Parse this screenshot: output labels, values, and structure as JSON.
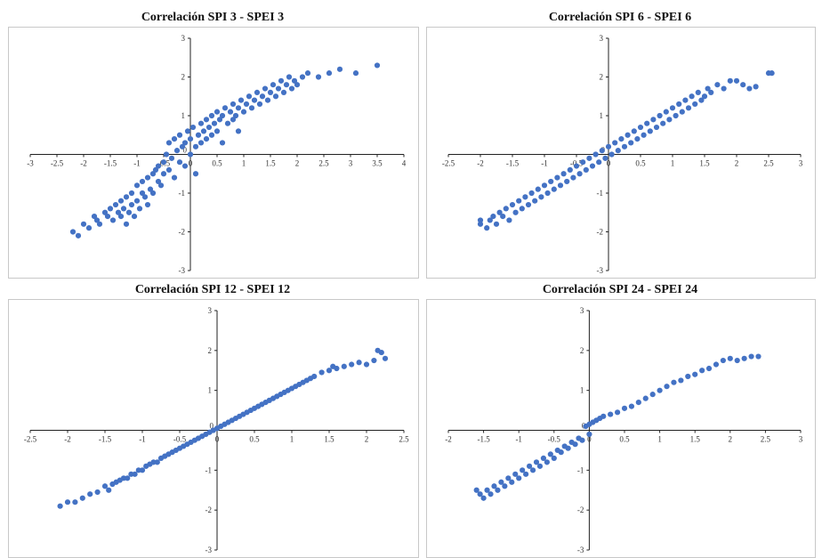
{
  "colors": {
    "point": "#4472C4",
    "axis": "#222222",
    "border": "#c8c8c8"
  },
  "chart_data": [
    {
      "type": "scatter",
      "title": "Correlación SPI 3 - SPEI 3",
      "xlim": [
        -3,
        4
      ],
      "ylim": [
        -3,
        3
      ],
      "xticks": [
        -3,
        -2.5,
        -2,
        -1.5,
        -1,
        -0.5,
        0,
        0.5,
        1,
        1.5,
        2,
        2.5,
        3,
        3.5,
        4
      ],
      "yticks": [
        -3,
        -2,
        -1,
        0,
        1,
        2,
        3
      ],
      "points": [
        [
          -2.2,
          -2.0
        ],
        [
          -2.1,
          -2.1
        ],
        [
          -2.0,
          -1.8
        ],
        [
          -1.9,
          -1.9
        ],
        [
          -1.8,
          -1.6
        ],
        [
          -1.75,
          -1.7
        ],
        [
          -1.7,
          -1.8
        ],
        [
          -1.6,
          -1.5
        ],
        [
          -1.55,
          -1.6
        ],
        [
          -1.5,
          -1.4
        ],
        [
          -1.45,
          -1.7
        ],
        [
          -1.4,
          -1.3
        ],
        [
          -1.35,
          -1.5
        ],
        [
          -1.3,
          -1.6
        ],
        [
          -1.3,
          -1.2
        ],
        [
          -1.25,
          -1.4
        ],
        [
          -1.2,
          -1.1
        ],
        [
          -1.2,
          -1.8
        ],
        [
          -1.15,
          -1.5
        ],
        [
          -1.1,
          -1.3
        ],
        [
          -1.1,
          -1.0
        ],
        [
          -1.05,
          -1.6
        ],
        [
          -1.0,
          -1.2
        ],
        [
          -1.0,
          -0.8
        ],
        [
          -0.95,
          -1.4
        ],
        [
          -0.9,
          -1.0
        ],
        [
          -0.9,
          -0.7
        ],
        [
          -0.85,
          -1.1
        ],
        [
          -0.8,
          -0.6
        ],
        [
          -0.8,
          -1.3
        ],
        [
          -0.75,
          -0.9
        ],
        [
          -0.7,
          -0.5
        ],
        [
          -0.7,
          -1.0
        ],
        [
          -0.65,
          -0.4
        ],
        [
          -0.6,
          -0.7
        ],
        [
          -0.6,
          -0.3
        ],
        [
          -0.55,
          -0.8
        ],
        [
          -0.5,
          -0.2
        ],
        [
          -0.5,
          -0.5
        ],
        [
          -0.45,
          0.0
        ],
        [
          -0.4,
          -0.4
        ],
        [
          -0.4,
          0.3
        ],
        [
          -0.35,
          -0.1
        ],
        [
          -0.3,
          0.4
        ],
        [
          -0.3,
          -0.6
        ],
        [
          -0.25,
          0.1
        ],
        [
          -0.2,
          -0.2
        ],
        [
          -0.2,
          0.5
        ],
        [
          -0.15,
          0.2
        ],
        [
          -0.1,
          -0.3
        ],
        [
          -0.1,
          0.3
        ],
        [
          -0.05,
          0.6
        ],
        [
          0.0,
          0.0
        ],
        [
          0.0,
          0.4
        ],
        [
          0.05,
          0.7
        ],
        [
          0.1,
          0.2
        ],
        [
          0.1,
          -0.5
        ],
        [
          0.15,
          0.5
        ],
        [
          0.2,
          0.3
        ],
        [
          0.2,
          0.8
        ],
        [
          0.25,
          0.6
        ],
        [
          0.3,
          0.4
        ],
        [
          0.3,
          0.9
        ],
        [
          0.35,
          0.7
        ],
        [
          0.4,
          0.5
        ],
        [
          0.4,
          1.0
        ],
        [
          0.45,
          0.8
        ],
        [
          0.5,
          0.6
        ],
        [
          0.5,
          1.1
        ],
        [
          0.55,
          0.9
        ],
        [
          0.6,
          0.3
        ],
        [
          0.6,
          1.0
        ],
        [
          0.65,
          1.2
        ],
        [
          0.7,
          0.8
        ],
        [
          0.75,
          1.1
        ],
        [
          0.8,
          0.9
        ],
        [
          0.8,
          1.3
        ],
        [
          0.85,
          1.0
        ],
        [
          0.9,
          1.2
        ],
        [
          0.9,
          0.6
        ],
        [
          0.95,
          1.4
        ],
        [
          1.0,
          1.1
        ],
        [
          1.05,
          1.3
        ],
        [
          1.1,
          1.5
        ],
        [
          1.15,
          1.2
        ],
        [
          1.2,
          1.4
        ],
        [
          1.25,
          1.6
        ],
        [
          1.3,
          1.3
        ],
        [
          1.35,
          1.5
        ],
        [
          1.4,
          1.7
        ],
        [
          1.45,
          1.4
        ],
        [
          1.5,
          1.6
        ],
        [
          1.55,
          1.8
        ],
        [
          1.6,
          1.5
        ],
        [
          1.65,
          1.7
        ],
        [
          1.7,
          1.9
        ],
        [
          1.75,
          1.6
        ],
        [
          1.8,
          1.8
        ],
        [
          1.85,
          2.0
        ],
        [
          1.9,
          1.7
        ],
        [
          1.95,
          1.9
        ],
        [
          2.0,
          1.8
        ],
        [
          2.1,
          2.0
        ],
        [
          2.2,
          2.1
        ],
        [
          2.4,
          2.0
        ],
        [
          2.6,
          2.1
        ],
        [
          2.8,
          2.2
        ],
        [
          3.1,
          2.1
        ],
        [
          3.5,
          2.3
        ]
      ]
    },
    {
      "type": "scatter",
      "title": "Correlación SPI 6 - SPEI 6",
      "xlim": [
        -2.5,
        3
      ],
      "ylim": [
        -3,
        3
      ],
      "xticks": [
        -2.5,
        -2,
        -1.5,
        -1,
        -0.5,
        0,
        0.5,
        1,
        1.5,
        2,
        2.5,
        3
      ],
      "yticks": [
        -3,
        -2,
        -1,
        0,
        1,
        2,
        3
      ],
      "points": [
        [
          -2.0,
          -1.8
        ],
        [
          -2.0,
          -1.7
        ],
        [
          -1.9,
          -1.9
        ],
        [
          -1.85,
          -1.7
        ],
        [
          -1.8,
          -1.6
        ],
        [
          -1.75,
          -1.8
        ],
        [
          -1.7,
          -1.5
        ],
        [
          -1.65,
          -1.6
        ],
        [
          -1.6,
          -1.4
        ],
        [
          -1.55,
          -1.7
        ],
        [
          -1.5,
          -1.3
        ],
        [
          -1.45,
          -1.5
        ],
        [
          -1.4,
          -1.2
        ],
        [
          -1.35,
          -1.4
        ],
        [
          -1.3,
          -1.1
        ],
        [
          -1.25,
          -1.3
        ],
        [
          -1.2,
          -1.0
        ],
        [
          -1.15,
          -1.2
        ],
        [
          -1.1,
          -0.9
        ],
        [
          -1.05,
          -1.1
        ],
        [
          -1.0,
          -0.8
        ],
        [
          -0.95,
          -1.0
        ],
        [
          -0.9,
          -0.7
        ],
        [
          -0.85,
          -0.9
        ],
        [
          -0.8,
          -0.6
        ],
        [
          -0.75,
          -0.8
        ],
        [
          -0.7,
          -0.5
        ],
        [
          -0.65,
          -0.7
        ],
        [
          -0.6,
          -0.4
        ],
        [
          -0.55,
          -0.6
        ],
        [
          -0.5,
          -0.3
        ],
        [
          -0.45,
          -0.5
        ],
        [
          -0.4,
          -0.2
        ],
        [
          -0.35,
          -0.4
        ],
        [
          -0.3,
          -0.1
        ],
        [
          -0.25,
          -0.3
        ],
        [
          -0.2,
          0.0
        ],
        [
          -0.15,
          -0.2
        ],
        [
          -0.1,
          0.1
        ],
        [
          -0.05,
          -0.1
        ],
        [
          0.0,
          0.2
        ],
        [
          0.05,
          0.0
        ],
        [
          0.1,
          0.3
        ],
        [
          0.15,
          0.1
        ],
        [
          0.2,
          0.4
        ],
        [
          0.25,
          0.2
        ],
        [
          0.3,
          0.5
        ],
        [
          0.35,
          0.3
        ],
        [
          0.4,
          0.6
        ],
        [
          0.45,
          0.4
        ],
        [
          0.5,
          0.7
        ],
        [
          0.55,
          0.5
        ],
        [
          0.6,
          0.8
        ],
        [
          0.65,
          0.6
        ],
        [
          0.7,
          0.9
        ],
        [
          0.75,
          0.7
        ],
        [
          0.8,
          1.0
        ],
        [
          0.85,
          0.8
        ],
        [
          0.9,
          1.1
        ],
        [
          0.95,
          0.9
        ],
        [
          1.0,
          1.2
        ],
        [
          1.05,
          1.0
        ],
        [
          1.1,
          1.3
        ],
        [
          1.15,
          1.1
        ],
        [
          1.2,
          1.4
        ],
        [
          1.25,
          1.2
        ],
        [
          1.3,
          1.5
        ],
        [
          1.35,
          1.3
        ],
        [
          1.4,
          1.6
        ],
        [
          1.45,
          1.4
        ],
        [
          1.5,
          1.5
        ],
        [
          1.55,
          1.7
        ],
        [
          1.6,
          1.6
        ],
        [
          1.7,
          1.8
        ],
        [
          1.8,
          1.7
        ],
        [
          1.9,
          1.9
        ],
        [
          2.0,
          1.9
        ],
        [
          2.1,
          1.8
        ],
        [
          2.2,
          1.7
        ],
        [
          2.3,
          1.75
        ],
        [
          2.5,
          2.1
        ],
        [
          2.55,
          2.1
        ]
      ]
    },
    {
      "type": "scatter",
      "title": "Correlación SPI 12 - SPEI 12",
      "xlim": [
        -2.5,
        2.5
      ],
      "ylim": [
        -3,
        3
      ],
      "xticks": [
        -2.5,
        -2,
        -1.5,
        -1,
        -0.5,
        0,
        0.5,
        1,
        1.5,
        2,
        2.5
      ],
      "yticks": [
        -3,
        -2,
        -1,
        0,
        1,
        2,
        3
      ],
      "points": [
        [
          -2.1,
          -1.9
        ],
        [
          -2.0,
          -1.8
        ],
        [
          -1.9,
          -1.8
        ],
        [
          -1.8,
          -1.7
        ],
        [
          -1.7,
          -1.6
        ],
        [
          -1.6,
          -1.55
        ],
        [
          -1.5,
          -1.4
        ],
        [
          -1.45,
          -1.5
        ],
        [
          -1.4,
          -1.35
        ],
        [
          -1.35,
          -1.3
        ],
        [
          -1.3,
          -1.25
        ],
        [
          -1.25,
          -1.2
        ],
        [
          -1.2,
          -1.2
        ],
        [
          -1.15,
          -1.1
        ],
        [
          -1.1,
          -1.1
        ],
        [
          -1.05,
          -1.0
        ],
        [
          -1.0,
          -1.0
        ],
        [
          -0.95,
          -0.9
        ],
        [
          -0.9,
          -0.85
        ],
        [
          -0.85,
          -0.8
        ],
        [
          -0.8,
          -0.8
        ],
        [
          -0.75,
          -0.7
        ],
        [
          -0.7,
          -0.65
        ],
        [
          -0.65,
          -0.6
        ],
        [
          -0.6,
          -0.55
        ],
        [
          -0.55,
          -0.5
        ],
        [
          -0.5,
          -0.45
        ],
        [
          -0.45,
          -0.4
        ],
        [
          -0.4,
          -0.35
        ],
        [
          -0.35,
          -0.3
        ],
        [
          -0.3,
          -0.25
        ],
        [
          -0.25,
          -0.2
        ],
        [
          -0.2,
          -0.15
        ],
        [
          -0.15,
          -0.1
        ],
        [
          -0.1,
          -0.05
        ],
        [
          -0.05,
          0.0
        ],
        [
          0.0,
          0.05
        ],
        [
          0.05,
          0.1
        ],
        [
          0.1,
          0.15
        ],
        [
          0.15,
          0.2
        ],
        [
          0.2,
          0.25
        ],
        [
          0.25,
          0.3
        ],
        [
          0.3,
          0.35
        ],
        [
          0.35,
          0.4
        ],
        [
          0.4,
          0.45
        ],
        [
          0.45,
          0.5
        ],
        [
          0.5,
          0.55
        ],
        [
          0.55,
          0.6
        ],
        [
          0.6,
          0.65
        ],
        [
          0.65,
          0.7
        ],
        [
          0.7,
          0.75
        ],
        [
          0.75,
          0.8
        ],
        [
          0.8,
          0.85
        ],
        [
          0.85,
          0.9
        ],
        [
          0.9,
          0.95
        ],
        [
          0.95,
          1.0
        ],
        [
          1.0,
          1.05
        ],
        [
          1.05,
          1.1
        ],
        [
          1.1,
          1.15
        ],
        [
          1.15,
          1.2
        ],
        [
          1.2,
          1.25
        ],
        [
          1.25,
          1.3
        ],
        [
          1.3,
          1.35
        ],
        [
          1.4,
          1.45
        ],
        [
          1.5,
          1.5
        ],
        [
          1.55,
          1.6
        ],
        [
          1.6,
          1.55
        ],
        [
          1.7,
          1.6
        ],
        [
          1.8,
          1.65
        ],
        [
          1.9,
          1.7
        ],
        [
          2.0,
          1.65
        ],
        [
          2.1,
          1.75
        ],
        [
          2.15,
          2.0
        ],
        [
          2.2,
          1.95
        ],
        [
          2.25,
          1.8
        ]
      ]
    },
    {
      "type": "scatter",
      "title": "Correlación SPI 24 - SPEI 24",
      "xlim": [
        -2,
        3
      ],
      "ylim": [
        -3,
        3
      ],
      "xticks": [
        -2,
        -1.5,
        -1,
        -0.5,
        0,
        0.5,
        1,
        1.5,
        2,
        2.5,
        3
      ],
      "yticks": [
        -3,
        -2,
        -1,
        0,
        1,
        2,
        3
      ],
      "points": [
        [
          -1.6,
          -1.5
        ],
        [
          -1.55,
          -1.6
        ],
        [
          -1.5,
          -1.7
        ],
        [
          -1.45,
          -1.5
        ],
        [
          -1.4,
          -1.6
        ],
        [
          -1.35,
          -1.4
        ],
        [
          -1.3,
          -1.5
        ],
        [
          -1.25,
          -1.3
        ],
        [
          -1.2,
          -1.4
        ],
        [
          -1.15,
          -1.2
        ],
        [
          -1.1,
          -1.3
        ],
        [
          -1.05,
          -1.1
        ],
        [
          -1.0,
          -1.2
        ],
        [
          -0.95,
          -1.0
        ],
        [
          -0.9,
          -1.1
        ],
        [
          -0.85,
          -0.9
        ],
        [
          -0.8,
          -1.0
        ],
        [
          -0.75,
          -0.8
        ],
        [
          -0.7,
          -0.9
        ],
        [
          -0.65,
          -0.7
        ],
        [
          -0.6,
          -0.8
        ],
        [
          -0.55,
          -0.6
        ],
        [
          -0.5,
          -0.7
        ],
        [
          -0.45,
          -0.5
        ],
        [
          -0.4,
          -0.55
        ],
        [
          -0.35,
          -0.4
        ],
        [
          -0.3,
          -0.45
        ],
        [
          -0.25,
          -0.3
        ],
        [
          -0.2,
          -0.35
        ],
        [
          -0.15,
          -0.2
        ],
        [
          -0.1,
          -0.25
        ],
        [
          -0.05,
          0.1
        ],
        [
          0.0,
          0.15
        ],
        [
          0.0,
          -0.1
        ],
        [
          0.05,
          0.2
        ],
        [
          0.1,
          0.25
        ],
        [
          0.15,
          0.3
        ],
        [
          0.2,
          0.35
        ],
        [
          0.3,
          0.4
        ],
        [
          0.4,
          0.45
        ],
        [
          0.5,
          0.55
        ],
        [
          0.6,
          0.6
        ],
        [
          0.7,
          0.7
        ],
        [
          0.8,
          0.8
        ],
        [
          0.9,
          0.9
        ],
        [
          1.0,
          1.0
        ],
        [
          1.1,
          1.1
        ],
        [
          1.2,
          1.2
        ],
        [
          1.3,
          1.25
        ],
        [
          1.4,
          1.35
        ],
        [
          1.5,
          1.4
        ],
        [
          1.6,
          1.5
        ],
        [
          1.7,
          1.55
        ],
        [
          1.8,
          1.65
        ],
        [
          1.9,
          1.75
        ],
        [
          2.0,
          1.8
        ],
        [
          2.1,
          1.75
        ],
        [
          2.2,
          1.8
        ],
        [
          2.3,
          1.85
        ],
        [
          2.4,
          1.85
        ]
      ]
    }
  ]
}
